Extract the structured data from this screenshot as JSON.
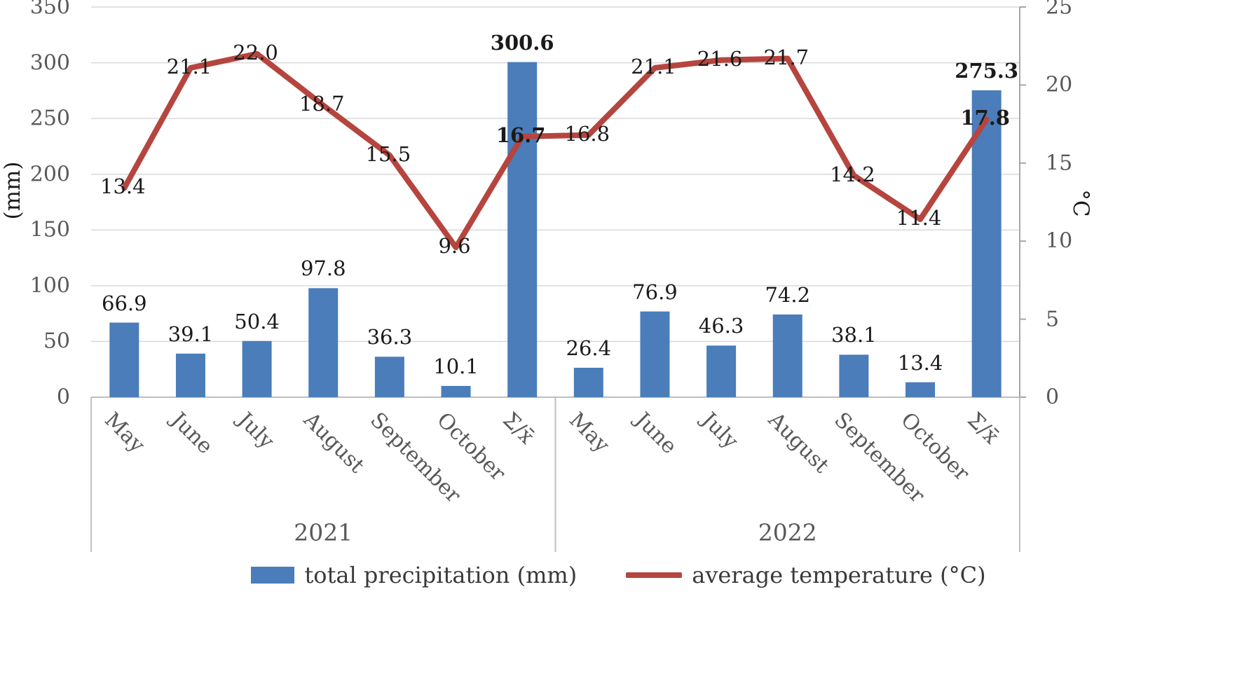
{
  "chart_data": {
    "type": "bar+line",
    "title": "",
    "left_axis": {
      "title": "(mm)",
      "min": 0,
      "max": 350,
      "step": 50
    },
    "right_axis": {
      "title": "°C",
      "min": 0,
      "max": 25,
      "step": 5
    },
    "groups": [
      {
        "year": "2021",
        "categories": [
          "May",
          "June",
          "July",
          "August",
          "September",
          "October",
          "Σ/x̄"
        ],
        "precipitation": [
          66.9,
          39.1,
          50.4,
          97.8,
          36.3,
          10.1,
          300.6
        ],
        "temperature": [
          13.4,
          21.1,
          22.0,
          18.7,
          15.5,
          9.6,
          16.7
        ]
      },
      {
        "year": "2022",
        "categories": [
          "May",
          "June",
          "July",
          "August",
          "September",
          "October",
          "Σ/x̄"
        ],
        "precipitation": [
          26.4,
          76.9,
          46.3,
          74.2,
          38.1,
          13.4,
          275.3
        ],
        "temperature": [
          16.8,
          21.1,
          21.6,
          21.7,
          14.2,
          11.4,
          17.8
        ]
      }
    ],
    "summary_category": "Σ/x̄",
    "legend": [
      {
        "label": "total precipitation (mm)",
        "type": "bar"
      },
      {
        "label": "average temperature (°C)",
        "type": "line"
      }
    ],
    "colors": {
      "bar": "#4a7dba",
      "line": "#b5453e",
      "grid": "#d9d9d9",
      "axis": "#bfbfbf",
      "right_axis": "#a6a6a6",
      "tick_text": "#595959",
      "label_text": "#1a1a1a"
    },
    "layout_hints": {
      "grid": "horizontal",
      "legend_position": "bottom",
      "x_label_rotation_deg": 45
    }
  }
}
